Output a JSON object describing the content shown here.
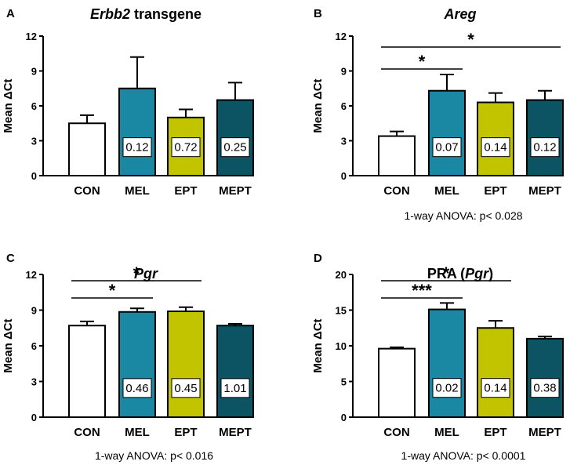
{
  "colors": {
    "CON": "#ffffff",
    "MEL": "#1a87a3",
    "EPT": "#c2c400",
    "MEPT": "#0c5363",
    "stroke": "#000000"
  },
  "chart_data": [
    {
      "panel": "A",
      "type": "bar",
      "title": "transgene",
      "title_italic": "Erbb2",
      "ylabel": "Mean ΔCt",
      "ylim": [
        0,
        12
      ],
      "yticks": [
        0,
        3,
        6,
        9,
        12
      ],
      "categories": [
        "CON",
        "MEL",
        "EPT",
        "MEPT"
      ],
      "values": [
        4.5,
        7.5,
        5.0,
        6.5
      ],
      "errors": [
        0.7,
        2.7,
        0.7,
        1.5
      ],
      "bar_labels": [
        "",
        "0.12",
        "0.72",
        "0.25"
      ],
      "significance": [],
      "anova": ""
    },
    {
      "panel": "B",
      "type": "bar",
      "title": "",
      "title_italic": "Areg",
      "ylabel": "Mean ΔCt",
      "ylim": [
        0,
        12
      ],
      "yticks": [
        0,
        3,
        6,
        9,
        12
      ],
      "categories": [
        "CON",
        "MEL",
        "EPT",
        "MEPT"
      ],
      "values": [
        3.4,
        7.3,
        6.3,
        6.5
      ],
      "errors": [
        0.4,
        1.4,
        0.8,
        0.8
      ],
      "bar_labels": [
        "",
        "0.07",
        "0.14",
        "0.12"
      ],
      "significance": [
        {
          "from": 0,
          "to": 1,
          "label": "*",
          "level": 0
        },
        {
          "from": 0,
          "to": 3,
          "label": "*",
          "level": 1
        }
      ],
      "anova": "1-way ANOVA:  p< 0.028"
    },
    {
      "panel": "C",
      "type": "bar",
      "title": "",
      "title_italic": "Pgr",
      "ylabel": "Mean ΔCt",
      "ylim": [
        0,
        12
      ],
      "yticks": [
        0,
        3,
        6,
        9,
        12
      ],
      "categories": [
        "CON",
        "MEL",
        "EPT",
        "MEPT"
      ],
      "values": [
        7.7,
        8.85,
        8.9,
        7.7
      ],
      "errors": [
        0.35,
        0.3,
        0.35,
        0.15
      ],
      "bar_labels": [
        "",
        "0.46",
        "0.45",
        "1.01"
      ],
      "significance": [
        {
          "from": 0,
          "to": 1,
          "label": "*",
          "level": 0
        },
        {
          "from": 0,
          "to": 2,
          "label": "*",
          "level": 1
        }
      ],
      "anova": "1-way ANOVA:  p< 0.016"
    },
    {
      "panel": "D",
      "type": "bar",
      "title": "PRA (",
      "title_italic": "Pgr",
      "title_suffix": ")",
      "ylabel": "Mean ΔCt",
      "ylim": [
        0,
        20
      ],
      "yticks": [
        0,
        5,
        10,
        15,
        20
      ],
      "categories": [
        "CON",
        "MEL",
        "EPT",
        "MEPT"
      ],
      "values": [
        9.6,
        15.1,
        12.5,
        11.0
      ],
      "errors": [
        0.2,
        0.9,
        1.0,
        0.3
      ],
      "bar_labels": [
        "",
        "0.02",
        "0.14",
        "0.38"
      ],
      "significance": [
        {
          "from": 0,
          "to": 1,
          "label": "***",
          "level": 0
        },
        {
          "from": 0,
          "to": 2,
          "label": "*",
          "level": 1
        }
      ],
      "anova": "1-way ANOVA:  p< 0.0001"
    }
  ]
}
